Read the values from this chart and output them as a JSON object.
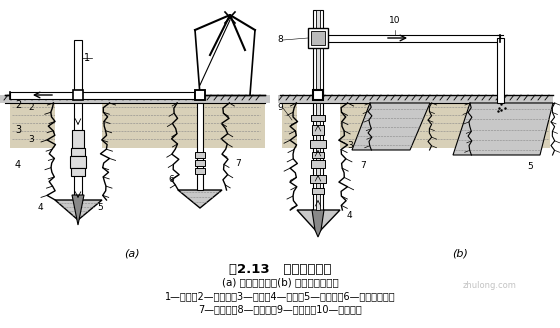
{
  "title": "图2.13   循环排渣方法",
  "subtitle": "(a) 正循环排渣；(b) 泵举反循环排渣",
  "caption_line1": "1—钻杆；2—送水管；3—主机；4—钻头；5—沉淀池；6—潜水泥浆泵；",
  "caption_line2": "7—泥浆池；8—砂石泵；9—抽渣管；10—排渣胶管",
  "label_a": "(a)",
  "label_b": "(b)",
  "bg_color": "#ffffff",
  "text_color": "#000000",
  "fig_width": 5.6,
  "fig_height": 3.28,
  "dpi": 100,
  "ground_color": "#c8c8c8",
  "mud_color": "#d8d0b8",
  "pond_color": "#c8c8c8"
}
